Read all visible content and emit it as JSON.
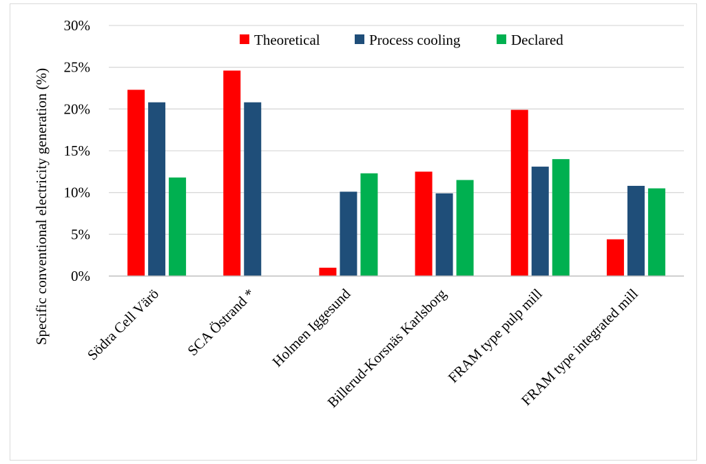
{
  "chart_data": {
    "type": "bar",
    "title": "",
    "xlabel": "",
    "ylabel": "Specific conventional electricity generation (%)",
    "ylim": [
      0,
      30
    ],
    "yticks": [
      0,
      5,
      10,
      15,
      20,
      25,
      30
    ],
    "ytick_labels": [
      "0%",
      "5%",
      "10%",
      "15%",
      "20%",
      "25%",
      "30%"
    ],
    "grid": true,
    "legend_position": "top",
    "categories": [
      "Södra Cell Värö",
      "SCA Östrand *",
      "Holmen Iggesund",
      "Billerud-Korsnäs Karlsborg",
      "FRAM type pulp mill",
      "FRAM type integrated mill"
    ],
    "series": [
      {
        "name": "Theoretical",
        "color": "#ff0000",
        "values": [
          22.3,
          24.6,
          1.0,
          12.5,
          19.9,
          4.4
        ]
      },
      {
        "name": "Process cooling",
        "color": "#1f4e79",
        "values": [
          20.8,
          20.8,
          10.1,
          9.9,
          13.1,
          10.8
        ]
      },
      {
        "name": "Declared",
        "color": "#00b050",
        "values": [
          11.8,
          null,
          12.3,
          11.5,
          14.0,
          10.5
        ]
      }
    ]
  }
}
